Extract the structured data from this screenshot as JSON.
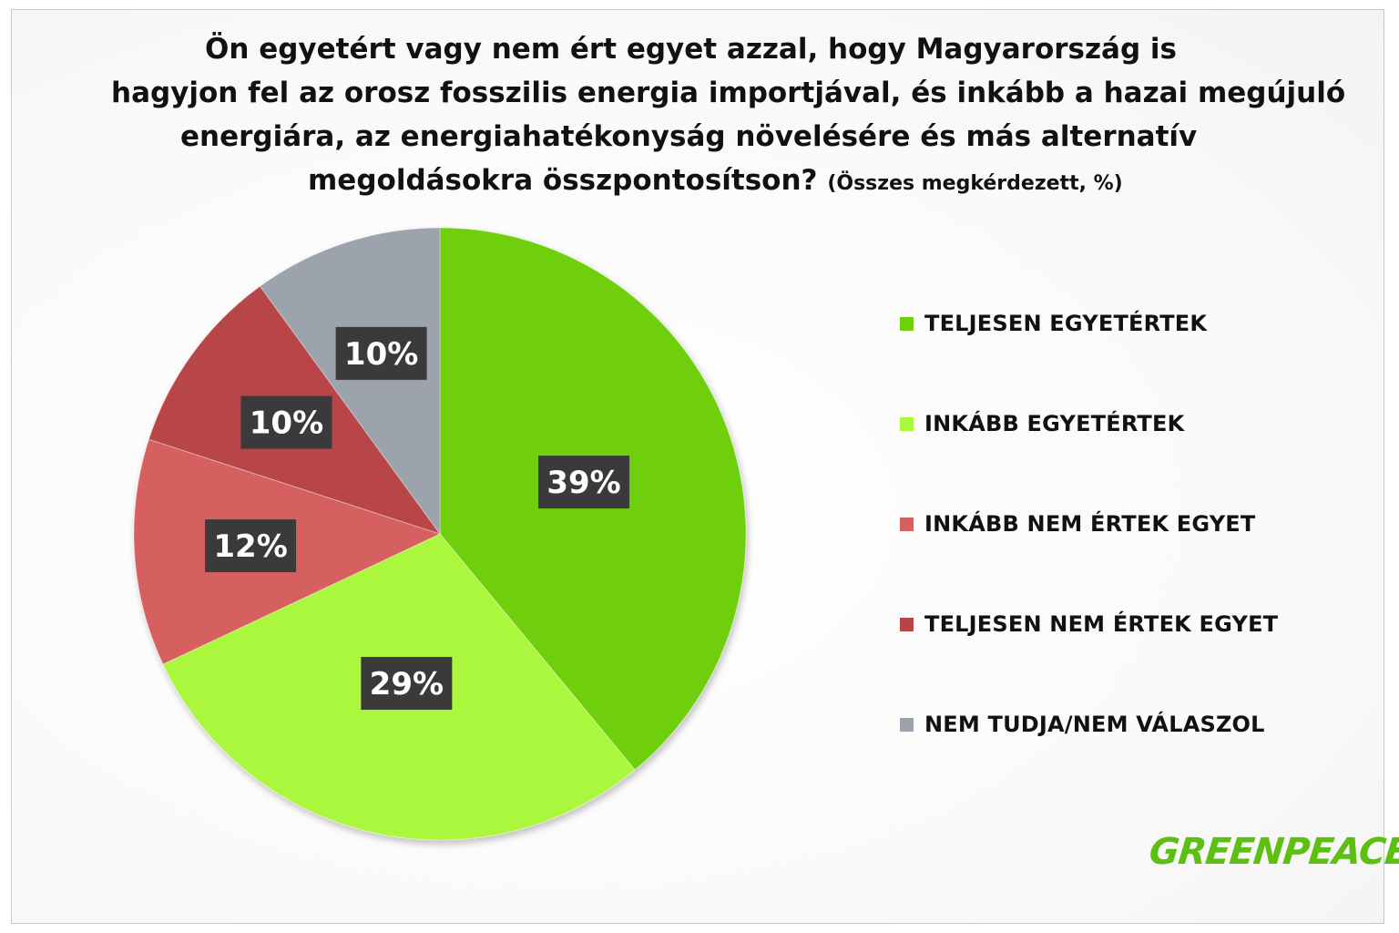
{
  "title_lines": [
    "Ön egyetért vagy nem ért egyet azzal, hogy Magyarország is",
    "hagyjon fel az orosz fosszilis energia importjával, és inkább a hazai megújuló",
    "energiára, az energiahatékonyság növelésére és más alternatív",
    "megoldásokra összpontosítson?"
  ],
  "subtitle": "(Összes megkérdezett, %)",
  "logo": "GREENPEACE",
  "chart_data": {
    "type": "pie",
    "title": "Ön egyetért vagy nem ért egyet azzal, hogy Magyarország is hagyjon fel az orosz fosszilis energia importjával, és inkább a hazai megújuló energiára, az energiahatékonyság növelésére és más alternatív megoldásokra összpontosítson?",
    "subtitle": "(Összes megkérdezett, %)",
    "start": "12 o'clock",
    "direction": "clockwise",
    "legend_position": "right",
    "slices": [
      {
        "label": "TELJESEN EGYETÉRTEK",
        "value": 39,
        "display": "39%",
        "color": "#6fcf0c"
      },
      {
        "label": "INKÁBB EGYETÉRTEK",
        "value": 29,
        "display": "29%",
        "color": "#abf73c"
      },
      {
        "label": "INKÁBB NEM ÉRTEK EGYET",
        "value": 12,
        "display": "12%",
        "color": "#d6605f"
      },
      {
        "label": "TELJESEN NEM ÉRTEK EGYET",
        "value": 10,
        "display": "10%",
        "color": "#b84446"
      },
      {
        "label": "NEM TUDJA/NEM VÁLASZOL",
        "value": 10,
        "display": "10%",
        "color": "#9da3ad"
      }
    ]
  }
}
